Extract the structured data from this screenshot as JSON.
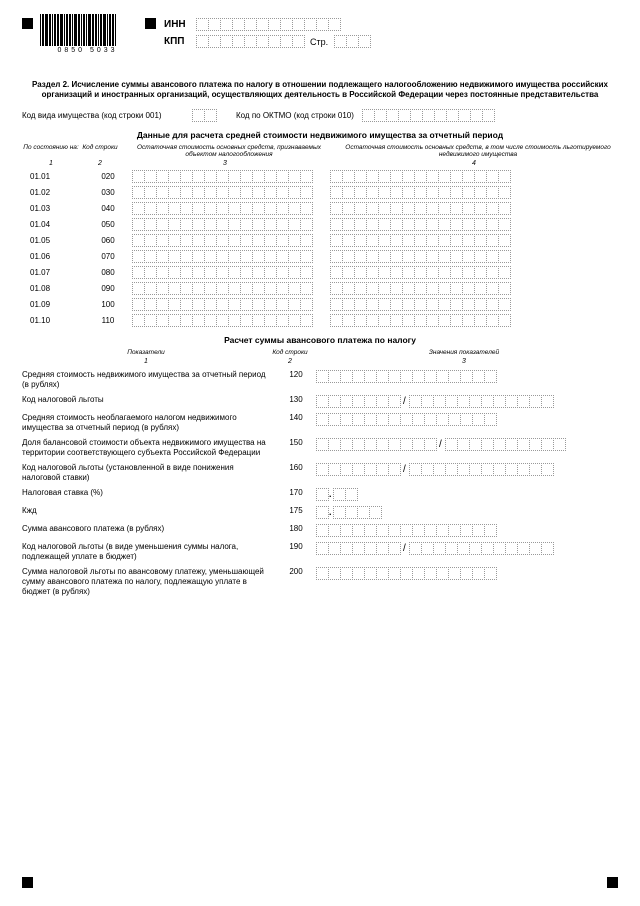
{
  "header": {
    "inn": "ИНН",
    "kpp": "КПП",
    "page": "Стр.",
    "barcode": "0850 5033"
  },
  "section_title": "Раздел 2. Исчисление суммы авансового платежа по налогу в отношении подлежащего налогообложению недвижимого имущества российских организаций и иностранных организаций, осуществляющих деятельность в Российской Федерации через постоянные представительства",
  "row1": {
    "l1": "Код вида имущества (код строки 001)",
    "l2": "Код по ОКТМО (код строки 010)"
  },
  "sub1": "Данные для расчета средней стоимости недвижимого имущества за отчетный период",
  "th": {
    "c1": "По состоянию на:",
    "c2": "Код строки",
    "c3": "Остаточная стоимость основных средств, признаваемых объектом налогообложения",
    "c4": "Остаточная стоимость основных средств, в том числе стоимость льготируемого недвижимого имущества"
  },
  "nums": {
    "n1": "1",
    "n2": "2",
    "n3": "3",
    "n4": "4"
  },
  "rows": [
    {
      "d": "01.01",
      "c": "020"
    },
    {
      "d": "01.02",
      "c": "030"
    },
    {
      "d": "01.03",
      "c": "040"
    },
    {
      "d": "01.04",
      "c": "050"
    },
    {
      "d": "01.05",
      "c": "060"
    },
    {
      "d": "01.06",
      "c": "070"
    },
    {
      "d": "01.07",
      "c": "080"
    },
    {
      "d": "01.08",
      "c": "090"
    },
    {
      "d": "01.09",
      "c": "100"
    },
    {
      "d": "01.10",
      "c": "110"
    }
  ],
  "sub2": "Расчет суммы авансового платежа по налогу",
  "th2": {
    "c1": "Показатели",
    "c2": "Код строки",
    "c3": "Значения показателей"
  },
  "calc": [
    {
      "l": "Средняя стоимость недвижимого имущества за отчетный период (в рублях)",
      "c": "120",
      "t": "n15"
    },
    {
      "l": "Код налоговой льготы",
      "c": "130",
      "t": "split7-12"
    },
    {
      "l": "Средняя стоимость необлагаемого налогом недвижимого имущества за отчетный период (в рублях)",
      "c": "140",
      "t": "n15"
    },
    {
      "l": "Доля балансовой стоимости объекта недвижимого имущества на территории соответствующего субъекта Российской Федерации",
      "c": "150",
      "t": "frac"
    },
    {
      "l": "Код налоговой льготы (установленной в виде понижения налоговой ставки)",
      "c": "160",
      "t": "split7-12"
    },
    {
      "l": "Налоговая ставка (%)",
      "c": "170",
      "t": "rate"
    },
    {
      "l": "Кжд",
      "c": "175",
      "t": "kzd"
    },
    {
      "l": "Сумма авансового платежа (в рублях)",
      "c": "180",
      "t": "n15"
    },
    {
      "l": "Код налоговой льготы (в виде уменьшения суммы налога, подлежащей уплате в бюджет)",
      "c": "190",
      "t": "split7-12"
    },
    {
      "l": "Сумма налоговой льготы по авансовому платежу, уменьшающей сумму авансового платежа по налогу, подлежащую уплате в бюджет (в рублях)",
      "c": "200",
      "t": "n15"
    }
  ]
}
